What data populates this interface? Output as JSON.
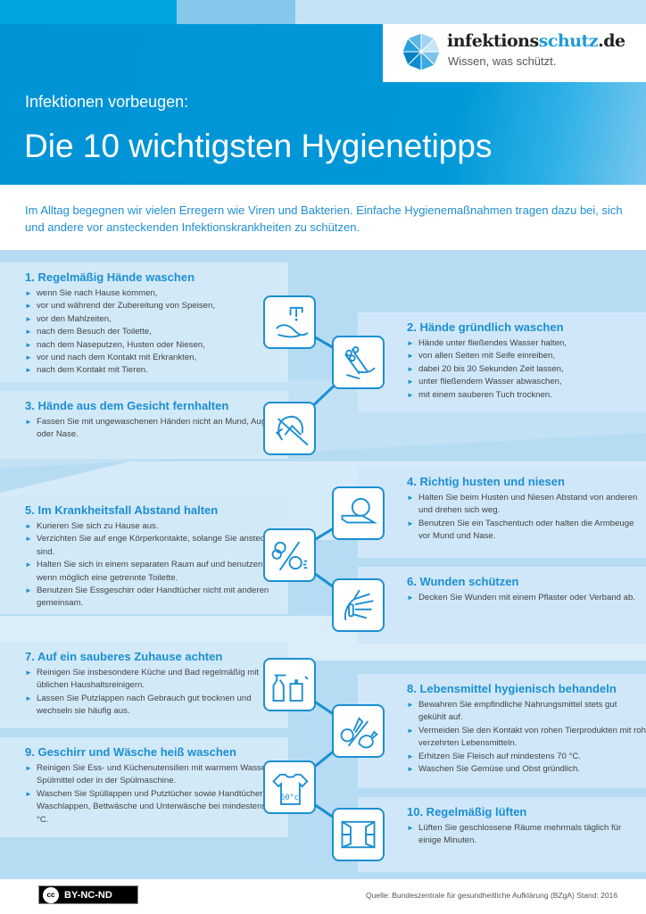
{
  "colors": {
    "brand": "#1b8fd2",
    "header": "#0096d6",
    "panel": "#d0e8f8",
    "background": "#b6dcf3"
  },
  "logo": {
    "name_part1": "infektions",
    "name_part2": "schutz",
    "name_part3": ".de",
    "tagline": "Wissen, was schützt.",
    "icon": "umbrella-icon"
  },
  "header": {
    "kicker": "Infektionen vorbeugen:",
    "title": "Die 10 wichtigsten Hygienetipps"
  },
  "intro": "Im Alltag begegnen wir vielen Erregern wie Viren und Bakterien. Einfache Hygienemaßnahmen tragen dazu bei, sich und andere vor ansteckenden Infektionskrankheiten zu schützen.",
  "tips": [
    {
      "title": "1. Regelmäßig Hände waschen",
      "icon": "tap-handwash-icon",
      "items": [
        "wenn Sie nach Hause kommen,",
        "vor und während der Zubereitung von Speisen,",
        "vor den Mahlzeiten,",
        "nach dem Besuch der Toilette,",
        "nach dem Naseputzen, Husten oder Niesen,",
        "vor und nach dem Kontakt mit Erkrankten,",
        "nach dem Kontakt mit Tieren."
      ]
    },
    {
      "title": "2. Hände gründlich waschen",
      "icon": "soapy-hands-icon",
      "items": [
        "Hände unter fließendes Wasser halten,",
        "von allen Seiten mit Seife einreiben,",
        "dabei 20 bis 30 Sekunden Zeit lassen,",
        "unter fließendem Wasser abwaschen,",
        "mit einem sauberen Tuch trocknen."
      ]
    },
    {
      "title": "3. Hände aus dem Gesicht fernhalten",
      "icon": "no-face-touch-icon",
      "items": [
        "Fassen Sie mit ungewaschenen Händen nicht an Mund, Augen oder Nase."
      ]
    },
    {
      "title": "4. Richtig husten und niesen",
      "icon": "cough-elbow-icon",
      "items": [
        "Halten Sie beim Husten und Niesen Abstand von anderen und drehen sich weg.",
        "Benutzen Sie  ein Taschentuch oder halten die Armbeuge vor Mund und Nase."
      ]
    },
    {
      "title": "5. Im Krankheitsfall Abstand halten",
      "icon": "keep-distance-icon",
      "items": [
        "Kurieren Sie sich zu Hause aus.",
        "Verzichten Sie auf enge Körperkontakte, solange Sie ansteckend sind.",
        "Halten Sie sich in einem separaten Raum auf und benutzen Sie wenn möglich eine getrennte Toilette.",
        "Benutzen Sie Essgeschirr oder Handtücher nicht mit anderen gemeinsam."
      ]
    },
    {
      "title": "6. Wunden schützen",
      "icon": "bandaged-hand-icon",
      "items": [
        "Decken Sie Wunden mit einem Pflaster oder Verband ab."
      ]
    },
    {
      "title": "7. Auf ein sauberes Zuhause achten",
      "icon": "cleaning-bottles-icon",
      "items": [
        "Reinigen Sie insbesondere Küche und Bad regelmäßig mit üblichen Haushaltsreinigern.",
        "Lassen Sie Putzlappen nach Gebrauch gut trocknen und wechseln sie häufig aus."
      ]
    },
    {
      "title": "8. Lebensmittel hygienisch behandeln",
      "icon": "food-separation-icon",
      "items": [
        "Bewahren Sie empfindliche Nahrungsmittel stets gut gekühlt auf.",
        "Vermeiden Sie den Kontakt von rohen Tierprodukten mit roh verzehrten Lebensmitteln.",
        "Erhitzen Sie Fleisch auf mindestens 70 °C.",
        "Waschen Sie Gemüse und Obst gründlich."
      ]
    },
    {
      "title": "9. Geschirr und Wäsche heiß waschen",
      "icon": "tshirt-60-icon",
      "icon_text": "60°c",
      "items": [
        "Reinigen Sie Ess- und Küchenutensilien mit warmem Wasser und Spülmittel oder in der Spülmaschine.",
        "Waschen Sie Spüllappen und Putztücher sowie Handtücher, Waschlappen, Bettwäsche und Unterwäsche bei mindestens 60 °C."
      ]
    },
    {
      "title": "10. Regelmäßig lüften",
      "icon": "open-window-icon",
      "items": [
        "Lüften Sie geschlossene Räume mehrmals täglich für einige Minuten."
      ]
    }
  ],
  "footer": {
    "license": "BY-NC-ND",
    "license_icon": "cc",
    "source": "Quelle: Bundeszentrale für gesundheitliche Aufklärung (BZgA) Stand: 2016"
  }
}
